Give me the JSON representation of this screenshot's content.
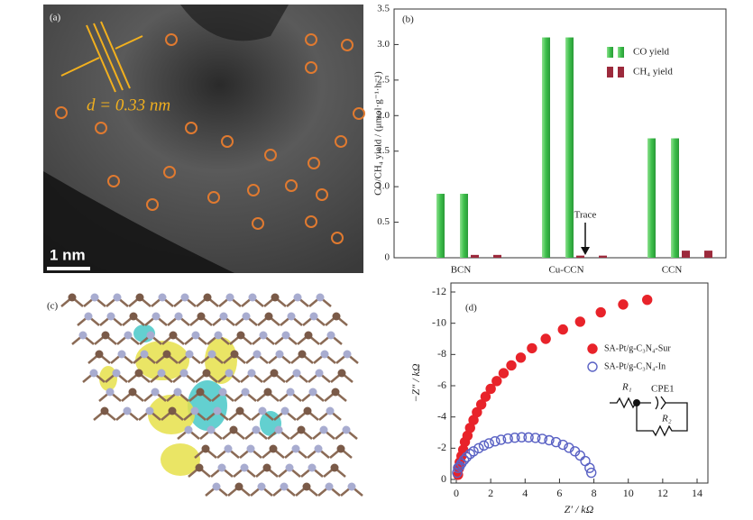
{
  "image_a": {
    "label": "(a)",
    "annotation": "d = 0.33 nm",
    "scale_bar": "1 nm"
  },
  "image_c": {
    "label": "(c)"
  },
  "chart_data": [
    {
      "type": "bar",
      "panel_label": "(b)",
      "y_label": "CO/CH₄ yield / (μmol·g⁻¹·h⁻¹)",
      "categories": [
        "BCN",
        "Cu-CCN",
        "CCN"
      ],
      "series": [
        {
          "name": "CO yield",
          "color": "#3cbf4a",
          "values": [
            0.9,
            3.1,
            1.68
          ]
        },
        {
          "name": "CH₄ yield",
          "color": "#9c2a3c",
          "values": [
            0.04,
            0.03,
            0.1
          ]
        }
      ],
      "ylim": [
        0,
        3.5
      ],
      "yticks": [
        0,
        0.5,
        {
          "value": 1.0,
          "label": "1.0"
        },
        1.5,
        {
          "value": 2.0,
          "label": "2.0"
        },
        2.5,
        {
          "value": 3.0,
          "label": "3.0"
        },
        3.5
      ],
      "annotation": "Trace",
      "legend": "upper right"
    },
    {
      "type": "scatter",
      "panel_label": "(d)",
      "x_label": "Z′ / kΩ",
      "y_label": "−Z″ / kΩ",
      "series": [
        {
          "name": "SA-Pt/g-C₃N₄-Sur",
          "color": "#e8232a",
          "filled": true,
          "x": [
            0.1,
            0.15,
            0.2,
            0.3,
            0.4,
            0.5,
            0.65,
            0.8,
            1.0,
            1.2,
            1.45,
            1.7,
            2.0,
            2.35,
            2.75,
            3.2,
            3.75,
            4.4,
            5.2,
            6.2,
            7.2,
            8.4,
            9.7,
            11.1
          ],
          "values": [
            -0.3,
            -0.7,
            -1.1,
            -1.5,
            -1.9,
            -2.4,
            -2.8,
            -3.3,
            -3.8,
            -4.3,
            -4.8,
            -5.3,
            -5.8,
            -6.3,
            -6.8,
            -7.3,
            -7.8,
            -8.4,
            -9.0,
            -9.6,
            -10.1,
            -10.7,
            -11.2,
            -11.5
          ]
        },
        {
          "name": "SA-Pt/g-C₃N₄-In",
          "color": "#5a62c4",
          "filled": false,
          "x": [
            0.05,
            0.1,
            0.2,
            0.3,
            0.45,
            0.6,
            0.8,
            1.0,
            1.3,
            1.6,
            1.9,
            2.25,
            2.6,
            3.0,
            3.4,
            3.8,
            4.2,
            4.6,
            5.0,
            5.4,
            5.8,
            6.2,
            6.55,
            6.9,
            7.2,
            7.5,
            7.75,
            7.85
          ],
          "values": [
            -0.43,
            -0.74,
            -0.85,
            -1.03,
            -1.25,
            -1.43,
            -1.63,
            -1.8,
            -2.0,
            -2.17,
            -2.31,
            -2.44,
            -2.54,
            -2.62,
            -2.67,
            -2.7,
            -2.69,
            -2.66,
            -2.6,
            -2.51,
            -2.39,
            -2.22,
            -2.03,
            -1.8,
            -1.53,
            -1.18,
            -0.74,
            -0.43
          ]
        }
      ],
      "xlim": [
        0,
        14
      ],
      "xticks": [
        0,
        2,
        4,
        6,
        8,
        10,
        12,
        14
      ],
      "ylim": [
        0,
        -12
      ],
      "yticks": [
        -12,
        -10,
        -8,
        -6,
        -4,
        -2,
        0
      ],
      "circuit": {
        "r1": "R₁",
        "cpe": "CPE1",
        "r2": "R₂"
      },
      "legend": "center right"
    }
  ]
}
